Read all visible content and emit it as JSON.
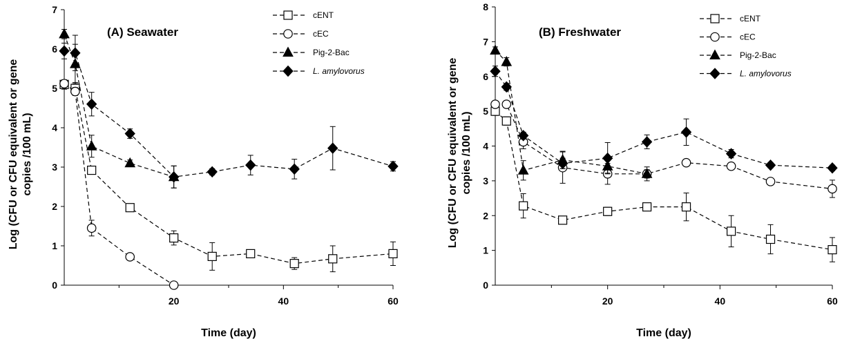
{
  "chart_data": [
    {
      "type": "line",
      "title": "(A) Seawater",
      "xlabel": "Time (day)",
      "ylabel": "Log (CFU or CFU equivalent or gene copies /100 mL)",
      "xlim": [
        0,
        60
      ],
      "ylim": [
        0,
        7
      ],
      "xticks": [
        "20",
        "40",
        "60"
      ],
      "yticks": [
        "0",
        "1",
        "2",
        "3",
        "4",
        "5",
        "6",
        "7"
      ],
      "grid": false,
      "legend_position": "top-right",
      "series": [
        {
          "name": "cENT",
          "marker": "square",
          "fill": "open",
          "italic": false,
          "x": [
            0,
            2,
            5,
            12,
            20,
            27,
            34,
            42,
            49,
            60
          ],
          "y": [
            5.1,
            5.0,
            2.92,
            1.97,
            1.2,
            0.73,
            0.8,
            0.55,
            0.67,
            0.8
          ],
          "err": [
            0.12,
            0.15,
            0.07,
            0.1,
            0.18,
            0.35,
            0.1,
            0.15,
            0.33,
            0.3
          ]
        },
        {
          "name": "cEC",
          "marker": "circle",
          "fill": "open",
          "italic": false,
          "x": [
            0,
            2,
            5,
            12,
            20
          ],
          "y": [
            5.12,
            4.92,
            1.45,
            0.72,
            0.0
          ],
          "err": [
            0.06,
            0.1,
            0.2,
            0.08,
            0
          ]
        },
        {
          "name": "Pig-2-Bac",
          "marker": "triangle",
          "fill": "filled",
          "italic": false,
          "x": [
            0,
            2,
            5,
            12,
            20
          ],
          "y": [
            6.38,
            5.62,
            3.53,
            3.1,
            2.75
          ],
          "err": [
            0.12,
            0.5,
            0.28,
            0.08,
            0.28
          ]
        },
        {
          "name": "L. amylovorus",
          "marker": "diamond",
          "fill": "filled",
          "italic": true,
          "x": [
            0,
            2,
            5,
            12,
            20,
            27,
            34,
            42,
            49,
            60
          ],
          "y": [
            5.95,
            5.9,
            4.6,
            3.85,
            2.75,
            2.88,
            3.05,
            2.95,
            3.48,
            3.02
          ],
          "err": [
            0.2,
            0.45,
            0.3,
            0.12,
            0.28,
            0.08,
            0.25,
            0.25,
            0.55,
            0.12
          ]
        }
      ]
    },
    {
      "type": "line",
      "title": "(B) Freshwater",
      "xlabel": "Time (day)",
      "ylabel": "Log (CFU or CFU equivalent or gene copies /100 mL)",
      "xlim": [
        0,
        60
      ],
      "ylim": [
        0,
        8
      ],
      "xticks": [
        "20",
        "40",
        "60"
      ],
      "yticks": [
        "0",
        "1",
        "2",
        "3",
        "4",
        "5",
        "6",
        "7",
        "8"
      ],
      "grid": false,
      "legend_position": "top-right",
      "series": [
        {
          "name": "cENT",
          "marker": "square",
          "fill": "open",
          "italic": false,
          "x": [
            0,
            2,
            5,
            12,
            20,
            27,
            34,
            42,
            49,
            60
          ],
          "y": [
            5.0,
            4.72,
            2.28,
            1.87,
            2.12,
            2.25,
            2.25,
            1.55,
            1.32,
            1.02
          ],
          "err": [
            0.12,
            0.12,
            0.35,
            0.08,
            0.12,
            0.08,
            0.4,
            0.45,
            0.42,
            0.35
          ]
        },
        {
          "name": "cEC",
          "marker": "circle",
          "fill": "open",
          "italic": false,
          "x": [
            0,
            2,
            5,
            12,
            20,
            27,
            34,
            42,
            49,
            60
          ],
          "y": [
            5.2,
            5.2,
            4.12,
            3.38,
            3.2,
            3.2,
            3.52,
            3.42,
            2.98,
            2.77
          ],
          "err": [
            0.1,
            0.1,
            0.2,
            0.45,
            0.3,
            0.2,
            0.08,
            0.1,
            0.08,
            0.25
          ]
        },
        {
          "name": "Pig-2-Bac",
          "marker": "triangle",
          "fill": "filled",
          "italic": false,
          "x": [
            0,
            2,
            5,
            12,
            20,
            27
          ],
          "y": [
            6.75,
            6.42,
            3.3,
            3.6,
            3.42,
            3.2
          ],
          "err": [
            0.1,
            0.12,
            0.28,
            0.25,
            0.2,
            0.12
          ]
        },
        {
          "name": "L. amylovorus",
          "marker": "diamond",
          "fill": "filled",
          "italic": true,
          "x": [
            0,
            2,
            5,
            12,
            20,
            27,
            34,
            42,
            49,
            60
          ],
          "y": [
            6.15,
            5.7,
            4.3,
            3.5,
            3.65,
            4.12,
            4.4,
            3.78,
            3.45,
            3.37
          ],
          "err": [
            0.15,
            0.1,
            0.1,
            0.15,
            0.45,
            0.2,
            0.38,
            0.12,
            0.08,
            0.08
          ]
        }
      ]
    }
  ]
}
